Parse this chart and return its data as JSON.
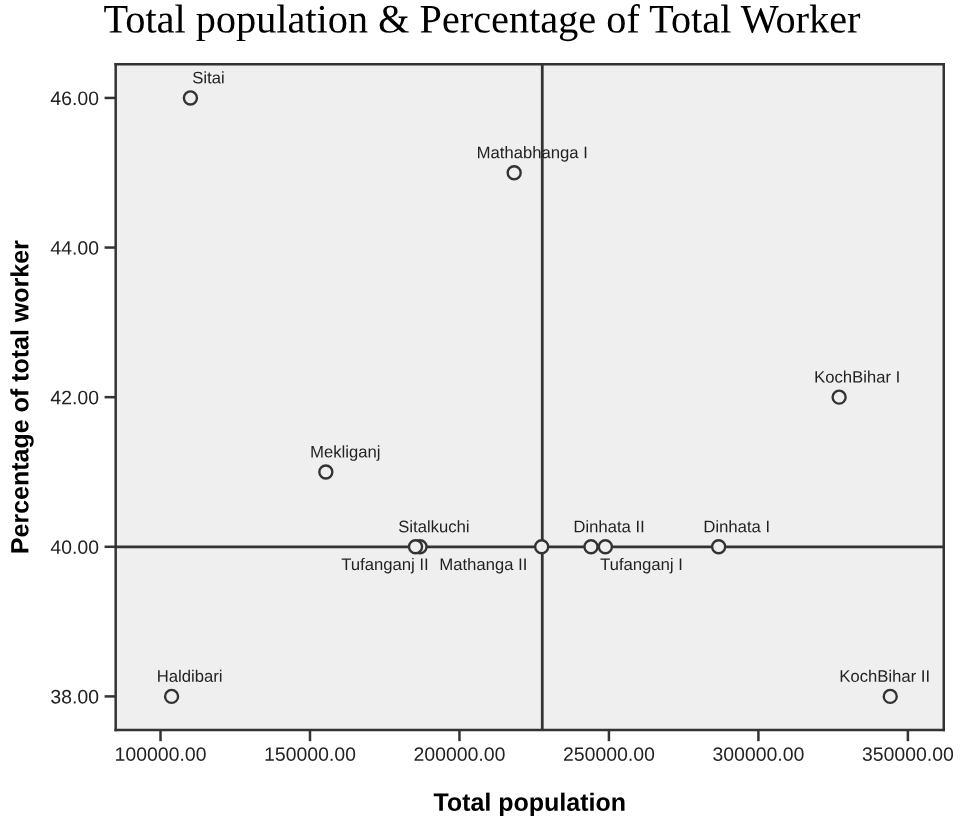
{
  "chart_data": {
    "type": "scatter",
    "title": "Total population & Percentage of Total Worker",
    "xlabel": "Total population",
    "ylabel": "Percentage of total worker",
    "series": [
      {
        "color": "#333333",
        "x": [
          110000,
          218300,
          327000,
          155300,
          186800,
          185300,
          227500,
          244000,
          248800,
          286700,
          103700,
          344100
        ],
        "values": [
          46,
          45,
          42,
          41,
          40,
          40,
          40,
          40,
          40,
          40,
          38,
          38
        ]
      }
    ],
    "marker": "circle",
    "grid": false,
    "xlim": [
      85000,
      362000
    ],
    "ylim": [
      37.55,
      46.45
    ],
    "xticks": [
      {
        "value": 100000,
        "label": "100000.00"
      },
      {
        "value": 150000,
        "label": "150000.00"
      },
      {
        "value": 200000,
        "label": "200000.00"
      },
      {
        "value": 250000,
        "label": "250000.00"
      },
      {
        "value": 300000,
        "label": "300000.00"
      },
      {
        "value": 350000,
        "label": "350000.00"
      }
    ],
    "yticks": [
      {
        "value": 38,
        "label": "38.00"
      },
      {
        "value": 40,
        "label": "40.00"
      },
      {
        "value": 42,
        "label": "42.00"
      },
      {
        "value": 44,
        "label": "44.00"
      },
      {
        "value": 46,
        "label": "46.00"
      }
    ],
    "ref_lines": [
      {
        "axis": "x",
        "value": 227700,
        "color": "#333333"
      },
      {
        "axis": "y",
        "value": 40,
        "color": "#333333"
      }
    ],
    "annotations": [
      {
        "text": "Sitai",
        "x": 110000,
        "y": 46
      },
      {
        "text": "Mathabhanga I",
        "x": 218300,
        "y": 45
      },
      {
        "text": "KochBihar I",
        "x": 327000,
        "y": 42
      },
      {
        "text": "Mekliganj",
        "x": 155300,
        "y": 41
      },
      {
        "text": "Sitalkuchi",
        "x": 186800,
        "y": 40
      },
      {
        "text": "Tufanganj II",
        "x": 185300,
        "y": 40
      },
      {
        "text": "Mathanga II",
        "x": 227500,
        "y": 40
      },
      {
        "text": "Dinhata II",
        "x": 244000,
        "y": 40
      },
      {
        "text": "Tufanganj I",
        "x": 248800,
        "y": 40
      },
      {
        "text": "Dinhata I",
        "x": 286700,
        "y": 40
      },
      {
        "text": "Haldibari",
        "x": 103700,
        "y": 38
      },
      {
        "text": "KochBihar II",
        "x": 344100,
        "y": 38
      }
    ]
  }
}
